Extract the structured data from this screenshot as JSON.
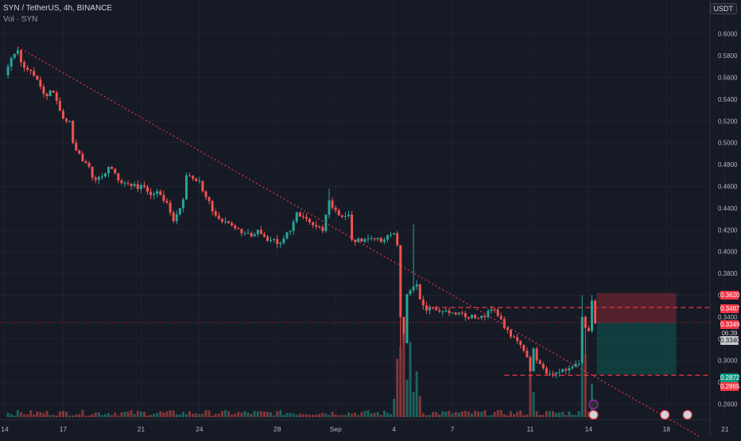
{
  "header": {
    "symbol_line": "SYN / TetherUS, 4h, BINANCE",
    "volume_label": "Vol · SYN"
  },
  "currency_button": "USDT",
  "price_labels": {
    "tp": "0.3620",
    "entry": "0.3487",
    "last_price": "0.3349",
    "countdown": "06:39",
    "stop_grey": "0.3340",
    "target_green": "0.2872",
    "stop_red": "0.2865"
  },
  "colors": {
    "background": "#161a25",
    "up": "#26a69a",
    "down": "#ef5350",
    "trendline": "#f23645",
    "level_line": "#f23645"
  },
  "chart_data": {
    "type": "candlestick",
    "title": "SYN / TetherUS, 4h, BINANCE",
    "y_ticks": [
      "0.6000",
      "0.5800",
      "0.5600",
      "0.5400",
      "0.5200",
      "0.5000",
      "0.4800",
      "0.4600",
      "0.4400",
      "0.4200",
      "0.4000",
      "0.3800",
      "0.3600",
      "0.3400",
      "0.3200",
      "0.3000",
      "0.2800",
      "0.2600"
    ],
    "ylim": [
      0.248,
      0.618
    ],
    "x_ticks": [
      {
        "label": "14",
        "index": 0
      },
      {
        "label": "17",
        "index": 18
      },
      {
        "label": "21",
        "index": 42
      },
      {
        "label": "24",
        "index": 60
      },
      {
        "label": "28",
        "index": 84
      },
      {
        "label": "Sep",
        "index": 102
      },
      {
        "label": "4",
        "index": 120
      },
      {
        "label": "7",
        "index": 138
      },
      {
        "label": "11",
        "index": 162
      },
      {
        "label": "14",
        "index": 180
      },
      {
        "label": "18",
        "index": 204
      },
      {
        "label": "21",
        "index": 222
      }
    ],
    "waypoints": [
      [
        0,
        0.562
      ],
      [
        2,
        0.578
      ],
      [
        4,
        0.585
      ],
      [
        5,
        0.574
      ],
      [
        8,
        0.566
      ],
      [
        10,
        0.558
      ],
      [
        12,
        0.545
      ],
      [
        15,
        0.546
      ],
      [
        18,
        0.522
      ],
      [
        20,
        0.52
      ],
      [
        21,
        0.5
      ],
      [
        22,
        0.493
      ],
      [
        24,
        0.483
      ],
      [
        26,
        0.478
      ],
      [
        27,
        0.468
      ],
      [
        30,
        0.469
      ],
      [
        32,
        0.478
      ],
      [
        34,
        0.472
      ],
      [
        36,
        0.463
      ],
      [
        40,
        0.462
      ],
      [
        44,
        0.455
      ],
      [
        48,
        0.452
      ],
      [
        50,
        0.445
      ],
      [
        52,
        0.428
      ],
      [
        54,
        0.44
      ],
      [
        55,
        0.448
      ],
      [
        56,
        0.47
      ],
      [
        58,
        0.467
      ],
      [
        60,
        0.465
      ],
      [
        62,
        0.45
      ],
      [
        64,
        0.437
      ],
      [
        66,
        0.43
      ],
      [
        68,
        0.428
      ],
      [
        70,
        0.424
      ],
      [
        72,
        0.421
      ],
      [
        74,
        0.417
      ],
      [
        76,
        0.414
      ],
      [
        78,
        0.42
      ],
      [
        80,
        0.414
      ],
      [
        82,
        0.411
      ],
      [
        84,
        0.407
      ],
      [
        86,
        0.412
      ],
      [
        88,
        0.419
      ],
      [
        90,
        0.436
      ],
      [
        92,
        0.432
      ],
      [
        94,
        0.427
      ],
      [
        96,
        0.423
      ],
      [
        98,
        0.419
      ],
      [
        100,
        0.447
      ],
      [
        102,
        0.438
      ],
      [
        104,
        0.432
      ],
      [
        106,
        0.434
      ],
      [
        107,
        0.411
      ],
      [
        109,
        0.412
      ],
      [
        112,
        0.412
      ],
      [
        116,
        0.409
      ],
      [
        118,
        0.415
      ],
      [
        120,
        0.417
      ],
      [
        121,
        0.406
      ],
      [
        122,
        0.34
      ],
      [
        123,
        0.316
      ],
      [
        124,
        0.361
      ],
      [
        126,
        0.368
      ],
      [
        127,
        0.37
      ],
      [
        128,
        0.356
      ],
      [
        130,
        0.346
      ],
      [
        132,
        0.348
      ],
      [
        134,
        0.345
      ],
      [
        136,
        0.346
      ],
      [
        138,
        0.344
      ],
      [
        140,
        0.344
      ],
      [
        142,
        0.34
      ],
      [
        144,
        0.342
      ],
      [
        146,
        0.339
      ],
      [
        148,
        0.34
      ],
      [
        150,
        0.347
      ],
      [
        152,
        0.341
      ],
      [
        154,
        0.33
      ],
      [
        156,
        0.322
      ],
      [
        158,
        0.318
      ],
      [
        160,
        0.309
      ],
      [
        161,
        0.303
      ],
      [
        162,
        0.29
      ],
      [
        163,
        0.311
      ],
      [
        164,
        0.3
      ],
      [
        166,
        0.293
      ],
      [
        168,
        0.288
      ],
      [
        170,
        0.289
      ],
      [
        172,
        0.292
      ],
      [
        174,
        0.293
      ],
      [
        176,
        0.297
      ],
      [
        177,
        0.297
      ],
      [
        178,
        0.34
      ],
      [
        179,
        0.33
      ],
      [
        180,
        0.327
      ],
      [
        181,
        0.355
      ],
      [
        182,
        0.334
      ]
    ],
    "volume_spikes": [
      [
        120,
        0.22
      ],
      [
        121,
        0.7
      ],
      [
        122,
        0.85
      ],
      [
        123,
        1.0
      ],
      [
        124,
        0.45
      ],
      [
        125,
        0.9
      ],
      [
        126,
        0.3
      ],
      [
        127,
        0.55
      ],
      [
        128,
        0.25
      ],
      [
        162,
        0.5
      ],
      [
        163,
        0.3
      ],
      [
        178,
        0.65
      ],
      [
        179,
        0.75
      ],
      [
        181,
        0.4
      ]
    ],
    "trendline": {
      "from": [
        4,
        0.588
      ],
      "to": [
        182,
        0.285
      ]
    },
    "level_lines": [
      0.3487,
      0.2865
    ],
    "current_price": 0.3349,
    "position_box": {
      "x_from": 182,
      "x_to": 207,
      "take_profit": 0.362,
      "entry": 0.3349,
      "target": 0.2872
    }
  }
}
